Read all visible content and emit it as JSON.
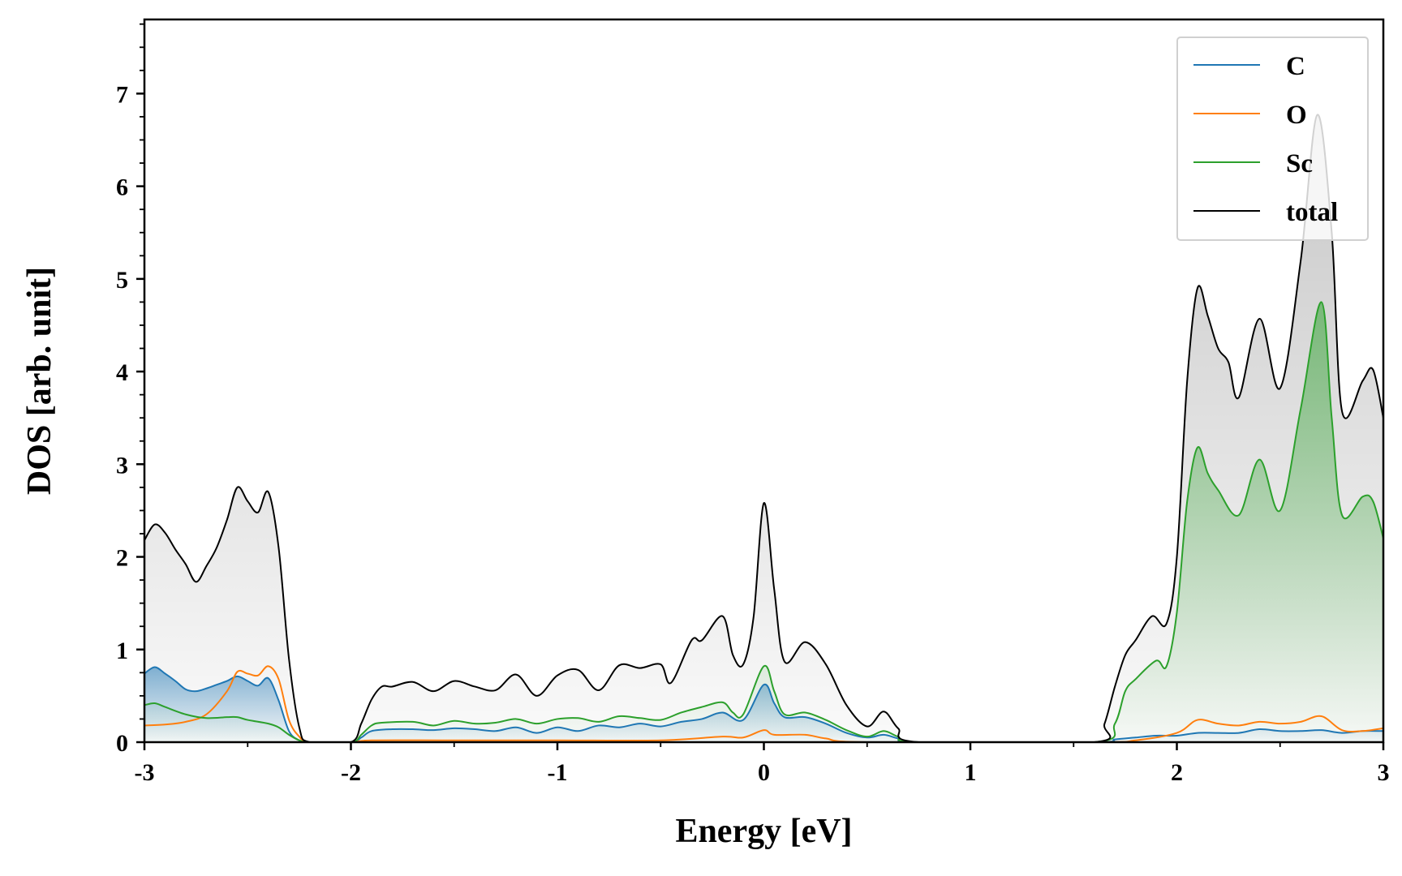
{
  "chart_data": {
    "type": "area",
    "title": "",
    "xlabel": "Energy [eV]",
    "ylabel": "DOS [arb. unit]",
    "xlim": [
      -3,
      3
    ],
    "ylim": [
      0,
      7.8
    ],
    "xticks": [
      -3,
      -2,
      -1,
      0,
      1,
      2,
      3
    ],
    "xtick_labels": [
      "-3",
      "-2",
      "-1",
      "0",
      "1",
      "2",
      "3"
    ],
    "yticks": [
      0,
      1,
      2,
      3,
      4,
      5,
      6,
      7
    ],
    "ytick_labels": [
      "0",
      "1",
      "2",
      "3",
      "4",
      "5",
      "6",
      "7"
    ],
    "legend_position": "top-right",
    "grid": false,
    "series": [
      {
        "name": "C",
        "color": "#1f77b4",
        "filled": true,
        "points": [
          [
            -3.0,
            0.74
          ],
          [
            -2.95,
            0.81
          ],
          [
            -2.9,
            0.74
          ],
          [
            -2.85,
            0.66
          ],
          [
            -2.8,
            0.57
          ],
          [
            -2.75,
            0.55
          ],
          [
            -2.7,
            0.58
          ],
          [
            -2.65,
            0.62
          ],
          [
            -2.6,
            0.66
          ],
          [
            -2.55,
            0.71
          ],
          [
            -2.5,
            0.66
          ],
          [
            -2.45,
            0.61
          ],
          [
            -2.4,
            0.69
          ],
          [
            -2.35,
            0.45
          ],
          [
            -2.3,
            0.12
          ],
          [
            -2.25,
            0.02
          ],
          [
            -2.2,
            0.0
          ],
          [
            -2.0,
            0.0
          ],
          [
            -1.95,
            0.05
          ],
          [
            -1.9,
            0.12
          ],
          [
            -1.8,
            0.14
          ],
          [
            -1.7,
            0.14
          ],
          [
            -1.6,
            0.13
          ],
          [
            -1.5,
            0.15
          ],
          [
            -1.4,
            0.14
          ],
          [
            -1.3,
            0.12
          ],
          [
            -1.2,
            0.16
          ],
          [
            -1.1,
            0.1
          ],
          [
            -1.0,
            0.16
          ],
          [
            -0.9,
            0.12
          ],
          [
            -0.8,
            0.18
          ],
          [
            -0.7,
            0.16
          ],
          [
            -0.6,
            0.2
          ],
          [
            -0.5,
            0.17
          ],
          [
            -0.4,
            0.22
          ],
          [
            -0.3,
            0.25
          ],
          [
            -0.2,
            0.32
          ],
          [
            -0.1,
            0.24
          ],
          [
            0.0,
            0.62
          ],
          [
            0.05,
            0.42
          ],
          [
            0.1,
            0.27
          ],
          [
            0.2,
            0.27
          ],
          [
            0.3,
            0.2
          ],
          [
            0.4,
            0.1
          ],
          [
            0.5,
            0.05
          ],
          [
            0.58,
            0.08
          ],
          [
            0.65,
            0.04
          ],
          [
            0.75,
            0.0
          ],
          [
            1.6,
            0.0
          ],
          [
            1.7,
            0.03
          ],
          [
            1.8,
            0.05
          ],
          [
            1.9,
            0.07
          ],
          [
            2.0,
            0.07
          ],
          [
            2.1,
            0.1
          ],
          [
            2.2,
            0.1
          ],
          [
            2.3,
            0.1
          ],
          [
            2.4,
            0.14
          ],
          [
            2.5,
            0.12
          ],
          [
            2.6,
            0.12
          ],
          [
            2.7,
            0.13
          ],
          [
            2.8,
            0.1
          ],
          [
            2.9,
            0.12
          ],
          [
            3.0,
            0.12
          ]
        ]
      },
      {
        "name": "O",
        "color": "#ff7f0e",
        "filled": false,
        "points": [
          [
            -3.0,
            0.18
          ],
          [
            -2.9,
            0.19
          ],
          [
            -2.8,
            0.22
          ],
          [
            -2.7,
            0.3
          ],
          [
            -2.6,
            0.55
          ],
          [
            -2.55,
            0.76
          ],
          [
            -2.5,
            0.74
          ],
          [
            -2.45,
            0.72
          ],
          [
            -2.4,
            0.82
          ],
          [
            -2.35,
            0.68
          ],
          [
            -2.3,
            0.24
          ],
          [
            -2.25,
            0.06
          ],
          [
            -2.2,
            0.0
          ],
          [
            -2.0,
            0.0
          ],
          [
            -1.9,
            0.02
          ],
          [
            -1.5,
            0.02
          ],
          [
            -1.0,
            0.02
          ],
          [
            -0.5,
            0.02
          ],
          [
            -0.2,
            0.06
          ],
          [
            -0.1,
            0.05
          ],
          [
            0.0,
            0.13
          ],
          [
            0.05,
            0.08
          ],
          [
            0.2,
            0.08
          ],
          [
            0.3,
            0.04
          ],
          [
            0.5,
            0.0
          ],
          [
            1.6,
            0.0
          ],
          [
            1.8,
            0.02
          ],
          [
            2.0,
            0.1
          ],
          [
            2.1,
            0.24
          ],
          [
            2.2,
            0.2
          ],
          [
            2.3,
            0.18
          ],
          [
            2.4,
            0.22
          ],
          [
            2.5,
            0.2
          ],
          [
            2.6,
            0.22
          ],
          [
            2.7,
            0.28
          ],
          [
            2.8,
            0.13
          ],
          [
            2.9,
            0.12
          ],
          [
            3.0,
            0.15
          ]
        ]
      },
      {
        "name": "Sc",
        "color": "#2ca02c",
        "filled": true,
        "points": [
          [
            -3.0,
            0.4
          ],
          [
            -2.95,
            0.42
          ],
          [
            -2.9,
            0.38
          ],
          [
            -2.8,
            0.3
          ],
          [
            -2.7,
            0.26
          ],
          [
            -2.6,
            0.27
          ],
          [
            -2.55,
            0.27
          ],
          [
            -2.5,
            0.24
          ],
          [
            -2.4,
            0.2
          ],
          [
            -2.35,
            0.16
          ],
          [
            -2.3,
            0.08
          ],
          [
            -2.25,
            0.02
          ],
          [
            -2.2,
            0.0
          ],
          [
            -2.0,
            0.0
          ],
          [
            -1.95,
            0.08
          ],
          [
            -1.9,
            0.18
          ],
          [
            -1.85,
            0.21
          ],
          [
            -1.7,
            0.22
          ],
          [
            -1.6,
            0.18
          ],
          [
            -1.5,
            0.23
          ],
          [
            -1.4,
            0.2
          ],
          [
            -1.3,
            0.21
          ],
          [
            -1.2,
            0.25
          ],
          [
            -1.1,
            0.2
          ],
          [
            -1.0,
            0.25
          ],
          [
            -0.9,
            0.26
          ],
          [
            -0.8,
            0.22
          ],
          [
            -0.7,
            0.28
          ],
          [
            -0.6,
            0.26
          ],
          [
            -0.5,
            0.24
          ],
          [
            -0.4,
            0.32
          ],
          [
            -0.3,
            0.38
          ],
          [
            -0.2,
            0.43
          ],
          [
            -0.15,
            0.32
          ],
          [
            -0.1,
            0.3
          ],
          [
            0.0,
            0.82
          ],
          [
            0.05,
            0.55
          ],
          [
            0.1,
            0.3
          ],
          [
            0.2,
            0.32
          ],
          [
            0.3,
            0.24
          ],
          [
            0.4,
            0.13
          ],
          [
            0.5,
            0.06
          ],
          [
            0.58,
            0.12
          ],
          [
            0.65,
            0.06
          ],
          [
            0.75,
            0.0
          ],
          [
            1.6,
            0.0
          ],
          [
            1.7,
            0.2
          ],
          [
            1.75,
            0.55
          ],
          [
            1.8,
            0.68
          ],
          [
            1.9,
            0.88
          ],
          [
            1.95,
            0.82
          ],
          [
            2.0,
            1.4
          ],
          [
            2.05,
            2.6
          ],
          [
            2.1,
            3.18
          ],
          [
            2.15,
            2.9
          ],
          [
            2.2,
            2.72
          ],
          [
            2.3,
            2.45
          ],
          [
            2.4,
            3.05
          ],
          [
            2.5,
            2.5
          ],
          [
            2.6,
            3.6
          ],
          [
            2.7,
            4.75
          ],
          [
            2.75,
            3.5
          ],
          [
            2.8,
            2.45
          ],
          [
            2.9,
            2.65
          ],
          [
            2.95,
            2.6
          ],
          [
            3.0,
            2.2
          ]
        ]
      },
      {
        "name": "total",
        "color": "#000000",
        "filled": true,
        "points": [
          [
            -3.0,
            2.18
          ],
          [
            -2.95,
            2.35
          ],
          [
            -2.9,
            2.26
          ],
          [
            -2.85,
            2.08
          ],
          [
            -2.8,
            1.92
          ],
          [
            -2.75,
            1.73
          ],
          [
            -2.7,
            1.9
          ],
          [
            -2.65,
            2.1
          ],
          [
            -2.6,
            2.4
          ],
          [
            -2.55,
            2.75
          ],
          [
            -2.5,
            2.6
          ],
          [
            -2.45,
            2.48
          ],
          [
            -2.4,
            2.7
          ],
          [
            -2.35,
            2.1
          ],
          [
            -2.3,
            0.9
          ],
          [
            -2.25,
            0.16
          ],
          [
            -2.2,
            0.0
          ],
          [
            -2.0,
            0.0
          ],
          [
            -1.95,
            0.2
          ],
          [
            -1.9,
            0.46
          ],
          [
            -1.85,
            0.6
          ],
          [
            -1.8,
            0.6
          ],
          [
            -1.7,
            0.65
          ],
          [
            -1.6,
            0.55
          ],
          [
            -1.5,
            0.66
          ],
          [
            -1.4,
            0.6
          ],
          [
            -1.3,
            0.56
          ],
          [
            -1.2,
            0.73
          ],
          [
            -1.1,
            0.5
          ],
          [
            -1.0,
            0.72
          ],
          [
            -0.9,
            0.78
          ],
          [
            -0.8,
            0.56
          ],
          [
            -0.7,
            0.83
          ],
          [
            -0.6,
            0.8
          ],
          [
            -0.5,
            0.84
          ],
          [
            -0.45,
            0.64
          ],
          [
            -0.35,
            1.1
          ],
          [
            -0.3,
            1.1
          ],
          [
            -0.2,
            1.36
          ],
          [
            -0.15,
            0.94
          ],
          [
            -0.1,
            0.84
          ],
          [
            -0.05,
            1.35
          ],
          [
            0.0,
            2.58
          ],
          [
            0.05,
            1.65
          ],
          [
            0.1,
            0.87
          ],
          [
            0.2,
            1.08
          ],
          [
            0.3,
            0.84
          ],
          [
            0.4,
            0.4
          ],
          [
            0.5,
            0.17
          ],
          [
            0.58,
            0.33
          ],
          [
            0.65,
            0.15
          ],
          [
            0.75,
            0.0
          ],
          [
            1.6,
            0.0
          ],
          [
            1.65,
            0.2
          ],
          [
            1.7,
            0.6
          ],
          [
            1.75,
            0.94
          ],
          [
            1.8,
            1.1
          ],
          [
            1.88,
            1.36
          ],
          [
            1.95,
            1.28
          ],
          [
            2.0,
            2.0
          ],
          [
            2.05,
            3.9
          ],
          [
            2.1,
            4.9
          ],
          [
            2.15,
            4.6
          ],
          [
            2.2,
            4.25
          ],
          [
            2.25,
            4.1
          ],
          [
            2.3,
            3.72
          ],
          [
            2.4,
            4.57
          ],
          [
            2.5,
            3.82
          ],
          [
            2.6,
            5.2
          ],
          [
            2.68,
            6.77
          ],
          [
            2.75,
            5.5
          ],
          [
            2.8,
            3.57
          ],
          [
            2.9,
            3.9
          ],
          [
            2.95,
            4.02
          ],
          [
            3.0,
            3.5
          ]
        ]
      }
    ]
  }
}
